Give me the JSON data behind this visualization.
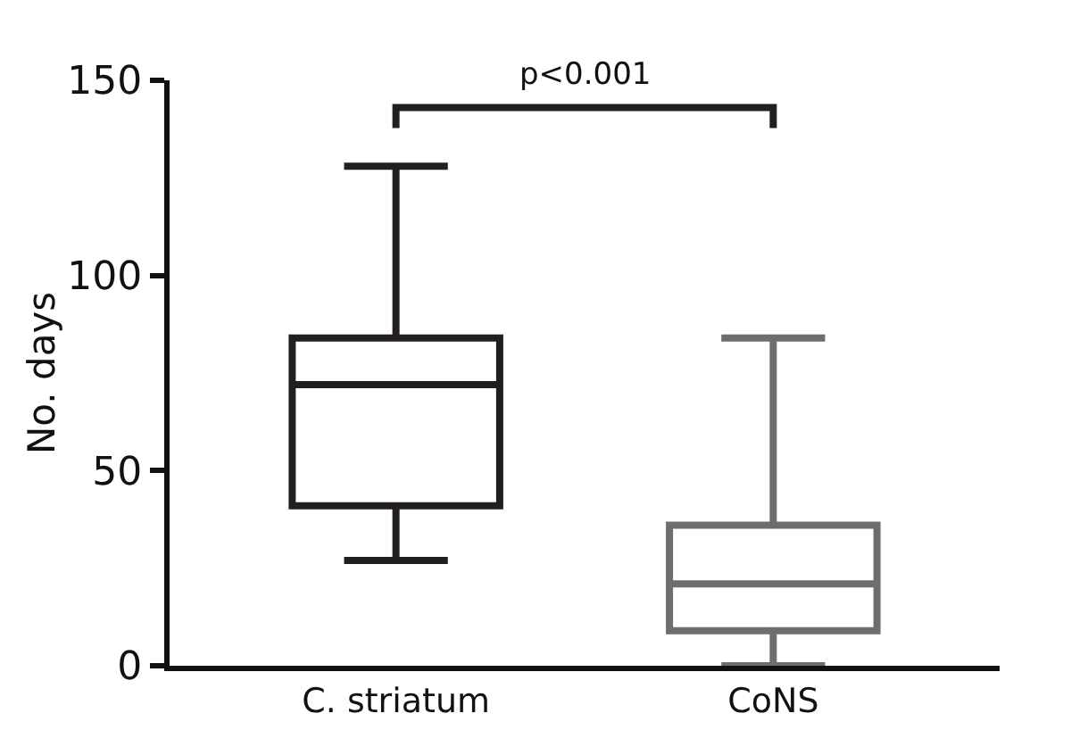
{
  "chart_data": {
    "type": "box",
    "ylabel": "No. days",
    "categories": [
      "C. striatum",
      "CoNS"
    ],
    "series": [
      {
        "color": "#231f20",
        "boxes": [
          {
            "low": 27,
            "q1": 41,
            "median": 72,
            "q3": 84,
            "high": 128
          },
          null
        ]
      },
      {
        "color": "#6d6d6d",
        "boxes": [
          null,
          {
            "low": 0,
            "q1": 9,
            "median": 21,
            "q3": 36,
            "high": 84
          }
        ]
      }
    ],
    "ylim": [
      0,
      150
    ],
    "yticks": [
      0,
      50,
      100,
      150
    ],
    "annotations": [
      "p<0.001"
    ]
  }
}
